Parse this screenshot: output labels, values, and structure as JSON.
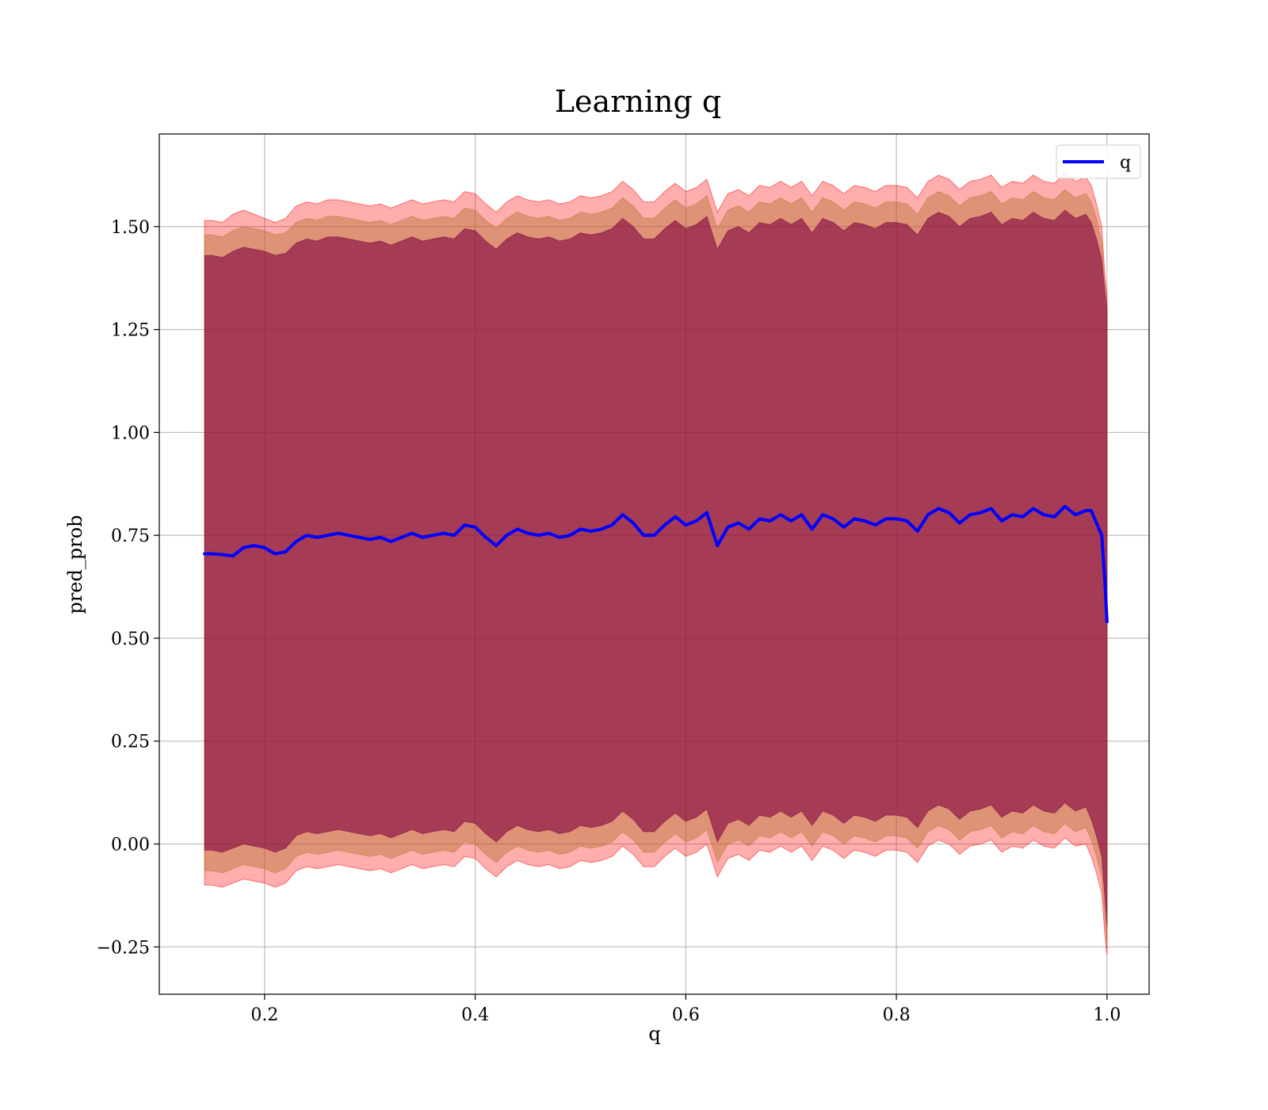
{
  "chart_data": {
    "type": "line",
    "title": "Learning q",
    "xlabel": "q",
    "ylabel": "pred_prob",
    "xlim": [
      0.1,
      1.04
    ],
    "ylim": [
      -0.365,
      1.725
    ],
    "xticks": [
      0.2,
      0.4,
      0.6,
      0.8,
      1.0
    ],
    "xtick_labels": [
      "0.2",
      "0.4",
      "0.6",
      "0.8",
      "1.0"
    ],
    "yticks": [
      -0.25,
      0.0,
      0.25,
      0.5,
      0.75,
      1.0,
      1.25,
      1.5
    ],
    "ytick_labels": [
      "−0.25",
      "0.00",
      "0.25",
      "0.50",
      "0.75",
      "1.00",
      "1.25",
      "1.50"
    ],
    "grid": true,
    "legend": {
      "position": "top-right",
      "entries": [
        "q"
      ]
    },
    "colors": {
      "line": "#0000ff",
      "outer_band": "#ff0000",
      "middle_band": "#b87333",
      "inner_band": "#800040",
      "grid": "#b0b0b0",
      "axes": "#000000"
    },
    "series": [
      {
        "name": "q",
        "x": [
          0.143,
          0.15,
          0.16,
          0.17,
          0.18,
          0.19,
          0.2,
          0.21,
          0.22,
          0.23,
          0.24,
          0.25,
          0.26,
          0.27,
          0.28,
          0.29,
          0.3,
          0.31,
          0.32,
          0.33,
          0.34,
          0.35,
          0.36,
          0.37,
          0.38,
          0.39,
          0.4,
          0.41,
          0.42,
          0.43,
          0.44,
          0.45,
          0.46,
          0.47,
          0.48,
          0.49,
          0.5,
          0.51,
          0.52,
          0.53,
          0.54,
          0.55,
          0.56,
          0.57,
          0.58,
          0.59,
          0.6,
          0.61,
          0.62,
          0.63,
          0.64,
          0.65,
          0.66,
          0.67,
          0.68,
          0.69,
          0.7,
          0.71,
          0.72,
          0.73,
          0.74,
          0.75,
          0.76,
          0.77,
          0.78,
          0.79,
          0.8,
          0.81,
          0.82,
          0.83,
          0.84,
          0.85,
          0.86,
          0.87,
          0.88,
          0.89,
          0.9,
          0.91,
          0.92,
          0.93,
          0.94,
          0.95,
          0.96,
          0.97,
          0.98,
          0.985,
          0.99,
          0.995,
          0.998,
          1.0
        ],
        "y": [
          0.705,
          0.705,
          0.703,
          0.7,
          0.72,
          0.725,
          0.72,
          0.705,
          0.71,
          0.735,
          0.75,
          0.745,
          0.75,
          0.755,
          0.75,
          0.745,
          0.74,
          0.745,
          0.735,
          0.745,
          0.755,
          0.745,
          0.75,
          0.755,
          0.75,
          0.775,
          0.77,
          0.745,
          0.725,
          0.75,
          0.765,
          0.755,
          0.75,
          0.755,
          0.745,
          0.75,
          0.765,
          0.76,
          0.765,
          0.775,
          0.8,
          0.78,
          0.75,
          0.75,
          0.775,
          0.795,
          0.775,
          0.785,
          0.805,
          0.725,
          0.77,
          0.78,
          0.765,
          0.79,
          0.785,
          0.8,
          0.785,
          0.8,
          0.765,
          0.8,
          0.79,
          0.77,
          0.79,
          0.785,
          0.775,
          0.79,
          0.79,
          0.785,
          0.76,
          0.8,
          0.815,
          0.805,
          0.78,
          0.8,
          0.805,
          0.815,
          0.785,
          0.8,
          0.795,
          0.815,
          0.8,
          0.795,
          0.82,
          0.8,
          0.81,
          0.81,
          0.78,
          0.75,
          0.64,
          0.54
        ]
      }
    ],
    "bands": [
      {
        "label_color": "outer_band",
        "upper": [
          1.515,
          1.515,
          1.51,
          1.53,
          1.54,
          1.53,
          1.52,
          1.51,
          1.52,
          1.55,
          1.56,
          1.555,
          1.565,
          1.565,
          1.56,
          1.555,
          1.55,
          1.555,
          1.545,
          1.555,
          1.565,
          1.555,
          1.56,
          1.565,
          1.56,
          1.585,
          1.58,
          1.555,
          1.535,
          1.56,
          1.575,
          1.565,
          1.56,
          1.565,
          1.555,
          1.56,
          1.575,
          1.57,
          1.575,
          1.585,
          1.61,
          1.59,
          1.56,
          1.56,
          1.585,
          1.605,
          1.585,
          1.595,
          1.615,
          1.535,
          1.58,
          1.59,
          1.575,
          1.6,
          1.595,
          1.61,
          1.595,
          1.61,
          1.575,
          1.61,
          1.6,
          1.58,
          1.6,
          1.595,
          1.585,
          1.6,
          1.6,
          1.595,
          1.57,
          1.61,
          1.625,
          1.615,
          1.59,
          1.61,
          1.615,
          1.625,
          1.595,
          1.61,
          1.605,
          1.625,
          1.61,
          1.605,
          1.63,
          1.61,
          1.62,
          1.6,
          1.555,
          1.5,
          1.38,
          1.33
        ],
        "lower": [
          -0.1,
          -0.1,
          -0.105,
          -0.095,
          -0.085,
          -0.09,
          -0.095,
          -0.105,
          -0.095,
          -0.065,
          -0.055,
          -0.06,
          -0.055,
          -0.05,
          -0.055,
          -0.06,
          -0.065,
          -0.06,
          -0.07,
          -0.06,
          -0.05,
          -0.06,
          -0.055,
          -0.05,
          -0.055,
          -0.03,
          -0.035,
          -0.06,
          -0.08,
          -0.055,
          -0.04,
          -0.05,
          -0.055,
          -0.05,
          -0.06,
          -0.055,
          -0.04,
          -0.045,
          -0.04,
          -0.03,
          -0.005,
          -0.025,
          -0.055,
          -0.055,
          -0.03,
          -0.01,
          -0.03,
          -0.02,
          0.0,
          -0.08,
          -0.035,
          -0.025,
          -0.04,
          -0.015,
          -0.02,
          -0.005,
          -0.02,
          -0.005,
          -0.04,
          -0.005,
          -0.015,
          -0.035,
          -0.015,
          -0.02,
          -0.03,
          -0.015,
          -0.015,
          -0.02,
          -0.045,
          -0.005,
          0.01,
          0.0,
          -0.025,
          -0.005,
          0.0,
          0.01,
          -0.02,
          -0.005,
          -0.01,
          0.01,
          -0.005,
          -0.01,
          0.015,
          -0.005,
          0.0,
          -0.03,
          -0.07,
          -0.12,
          -0.22,
          -0.27
        ]
      },
      {
        "label_color": "middle_band",
        "upper": [
          1.48,
          1.48,
          1.475,
          1.49,
          1.5,
          1.495,
          1.49,
          1.48,
          1.485,
          1.51,
          1.52,
          1.515,
          1.525,
          1.525,
          1.52,
          1.515,
          1.51,
          1.515,
          1.505,
          1.515,
          1.525,
          1.515,
          1.52,
          1.525,
          1.52,
          1.545,
          1.54,
          1.515,
          1.495,
          1.52,
          1.535,
          1.525,
          1.52,
          1.525,
          1.515,
          1.52,
          1.535,
          1.53,
          1.535,
          1.545,
          1.57,
          1.55,
          1.52,
          1.52,
          1.545,
          1.565,
          1.545,
          1.555,
          1.575,
          1.495,
          1.54,
          1.55,
          1.535,
          1.56,
          1.555,
          1.57,
          1.555,
          1.57,
          1.535,
          1.57,
          1.56,
          1.54,
          1.56,
          1.555,
          1.545,
          1.56,
          1.56,
          1.555,
          1.53,
          1.57,
          1.585,
          1.575,
          1.55,
          1.57,
          1.575,
          1.585,
          1.555,
          1.57,
          1.565,
          1.585,
          1.57,
          1.565,
          1.59,
          1.57,
          1.58,
          1.56,
          1.52,
          1.46,
          1.36,
          1.32
        ],
        "lower": [
          -0.065,
          -0.065,
          -0.07,
          -0.06,
          -0.05,
          -0.055,
          -0.06,
          -0.07,
          -0.06,
          -0.03,
          -0.02,
          -0.025,
          -0.02,
          -0.015,
          -0.02,
          -0.025,
          -0.03,
          -0.025,
          -0.035,
          -0.025,
          -0.015,
          -0.025,
          -0.02,
          -0.015,
          -0.02,
          0.005,
          0.0,
          -0.025,
          -0.045,
          -0.02,
          -0.005,
          -0.015,
          -0.02,
          -0.015,
          -0.025,
          -0.02,
          -0.005,
          -0.01,
          -0.005,
          0.005,
          0.03,
          0.01,
          -0.02,
          -0.02,
          0.005,
          0.025,
          0.005,
          0.015,
          0.035,
          -0.045,
          0.0,
          0.01,
          -0.005,
          0.02,
          0.015,
          0.03,
          0.015,
          0.03,
          -0.005,
          0.03,
          0.02,
          0.0,
          0.02,
          0.015,
          0.005,
          0.02,
          0.02,
          0.015,
          -0.01,
          0.03,
          0.045,
          0.035,
          0.01,
          0.03,
          0.035,
          0.045,
          0.015,
          0.03,
          0.025,
          0.045,
          0.03,
          0.025,
          0.05,
          0.03,
          0.04,
          0.01,
          -0.03,
          -0.08,
          -0.18,
          -0.24
        ]
      },
      {
        "label_color": "inner_band",
        "upper": [
          1.43,
          1.43,
          1.425,
          1.44,
          1.45,
          1.445,
          1.44,
          1.43,
          1.435,
          1.46,
          1.47,
          1.465,
          1.475,
          1.475,
          1.47,
          1.465,
          1.46,
          1.465,
          1.455,
          1.465,
          1.475,
          1.465,
          1.47,
          1.475,
          1.47,
          1.495,
          1.49,
          1.465,
          1.445,
          1.47,
          1.485,
          1.475,
          1.47,
          1.475,
          1.465,
          1.47,
          1.485,
          1.48,
          1.485,
          1.495,
          1.52,
          1.5,
          1.47,
          1.47,
          1.495,
          1.515,
          1.495,
          1.505,
          1.525,
          1.445,
          1.49,
          1.5,
          1.485,
          1.51,
          1.505,
          1.52,
          1.505,
          1.52,
          1.485,
          1.52,
          1.51,
          1.49,
          1.51,
          1.505,
          1.495,
          1.51,
          1.51,
          1.505,
          1.48,
          1.52,
          1.535,
          1.525,
          1.5,
          1.52,
          1.525,
          1.535,
          1.505,
          1.52,
          1.515,
          1.535,
          1.52,
          1.515,
          1.54,
          1.52,
          1.53,
          1.51,
          1.47,
          1.42,
          1.34,
          1.3
        ],
        "lower": [
          -0.015,
          -0.015,
          -0.02,
          -0.01,
          0.0,
          -0.005,
          -0.01,
          -0.02,
          -0.01,
          0.02,
          0.03,
          0.025,
          0.03,
          0.035,
          0.03,
          0.025,
          0.02,
          0.025,
          0.015,
          0.025,
          0.035,
          0.025,
          0.03,
          0.035,
          0.03,
          0.055,
          0.05,
          0.025,
          0.005,
          0.03,
          0.045,
          0.035,
          0.03,
          0.035,
          0.025,
          0.03,
          0.045,
          0.04,
          0.045,
          0.055,
          0.08,
          0.06,
          0.03,
          0.03,
          0.055,
          0.075,
          0.055,
          0.065,
          0.085,
          0.005,
          0.05,
          0.06,
          0.045,
          0.07,
          0.065,
          0.08,
          0.065,
          0.08,
          0.045,
          0.08,
          0.07,
          0.05,
          0.07,
          0.065,
          0.055,
          0.07,
          0.07,
          0.065,
          0.04,
          0.08,
          0.095,
          0.085,
          0.06,
          0.08,
          0.085,
          0.095,
          0.065,
          0.08,
          0.075,
          0.095,
          0.08,
          0.075,
          0.1,
          0.08,
          0.09,
          0.06,
          0.02,
          -0.03,
          -0.13,
          -0.2
        ]
      }
    ]
  }
}
